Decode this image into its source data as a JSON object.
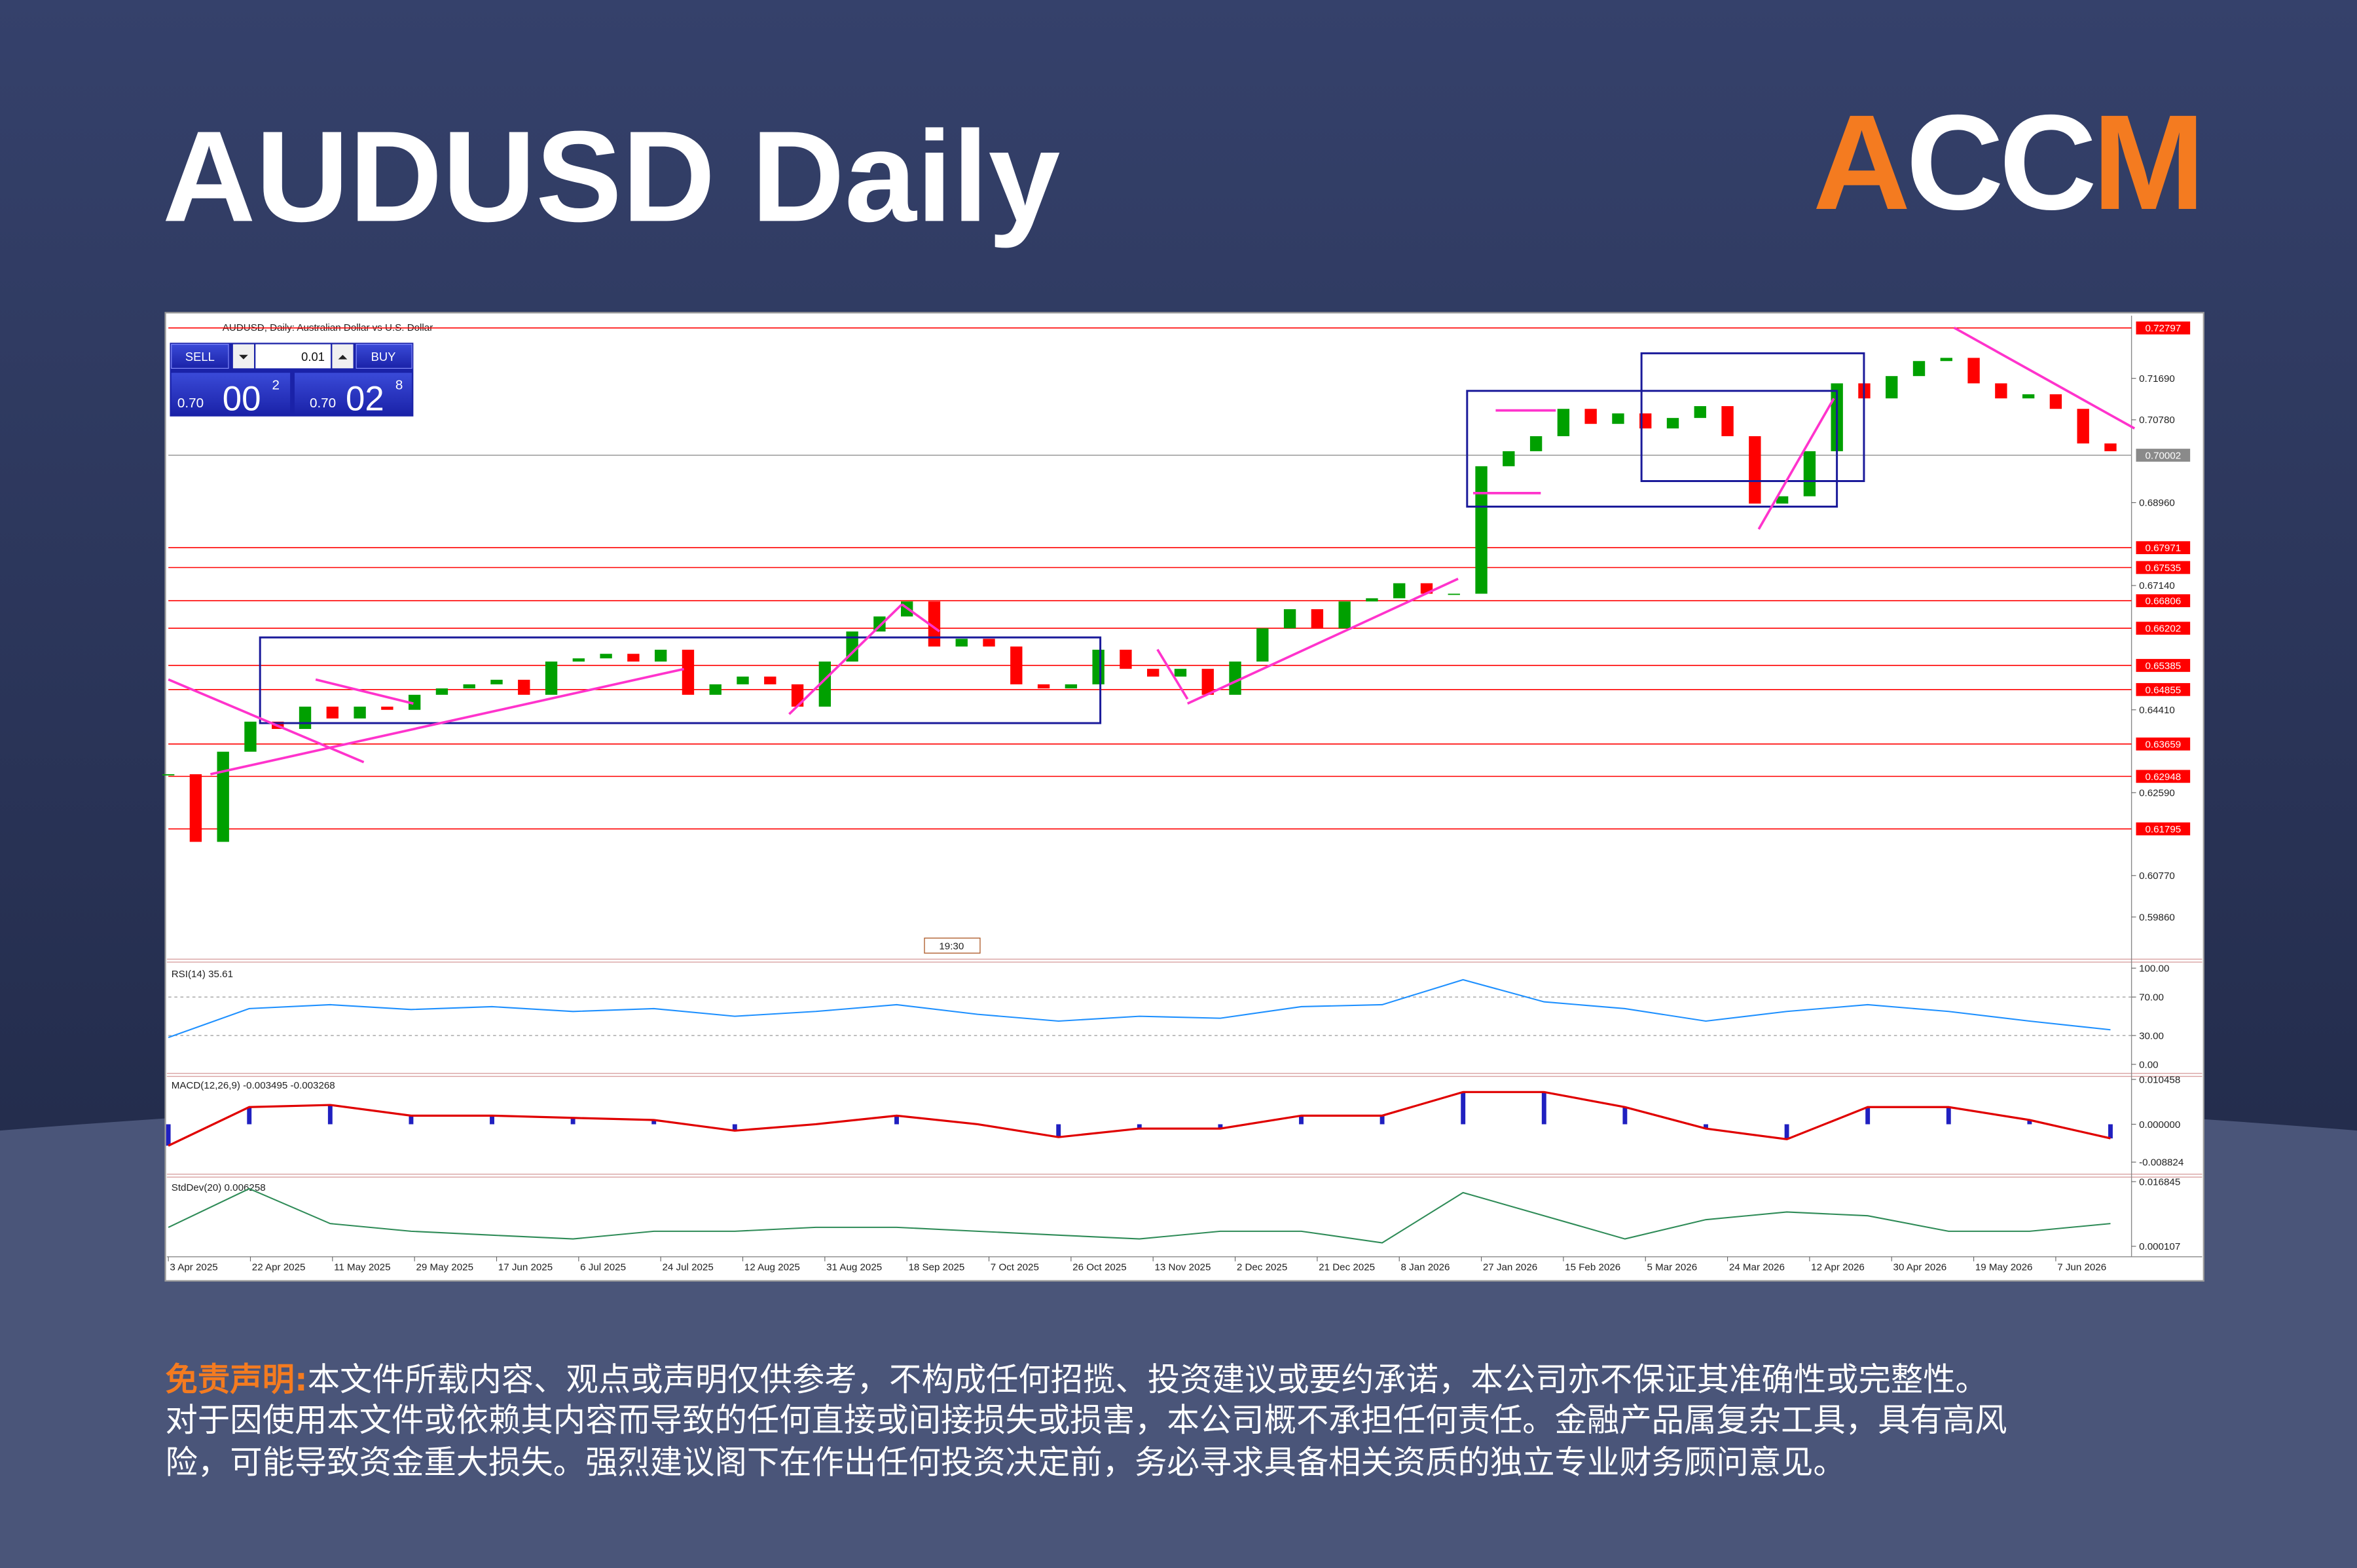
{
  "header": {
    "title": "AUDUSD Daily",
    "logo": [
      "A",
      "CC",
      "M"
    ]
  },
  "trade_panel": {
    "sell": "SELL",
    "buy": "BUY",
    "lot": "0.01",
    "sell_price": [
      "0.70",
      "00",
      "2"
    ],
    "buy_price": [
      "0.70",
      "02",
      "8"
    ]
  },
  "chart_data": [
    {
      "type": "candlestick",
      "title": "AUDUSD, Daily:  Australian Dollar vs U.S. Dollar",
      "up_color": "#00a000",
      "down_color": "#ff0000",
      "categories": [
        "3 Apr 2025",
        null,
        null,
        "22 Apr 2025",
        null,
        null,
        "11 May 2025",
        null,
        null,
        "29 May 2025",
        null,
        null,
        "17 Jun 2025",
        null,
        null,
        "6 Jul 2025",
        null,
        null,
        "24 Jul 2025",
        null,
        null,
        "12 Aug 2025",
        null,
        null,
        "31 Aug 2025",
        null,
        null,
        "18 Sep 2025",
        null,
        null,
        "7 Oct 2025",
        null,
        null,
        "26 Oct 2025",
        null,
        null,
        "13 Nov 2025",
        null,
        null,
        "2 Dec 2025",
        null,
        null,
        "21 Dec 2025",
        null,
        null,
        "8 Jan 2026",
        null,
        null,
        "27 Jan 2026",
        null,
        null,
        "15 Feb 2026",
        null,
        null,
        "5 Mar 2026",
        null,
        null,
        "24 Mar 2026",
        null,
        null,
        "12 Apr 2026",
        null,
        null,
        "30 Apr 2026",
        null,
        null,
        "19 May 2026",
        null,
        null,
        "7 Jun 2026",
        null,
        null
      ],
      "values": [
        0.62995,
        0.6151,
        0.6349,
        0.6415,
        0.6399,
        0.6448,
        0.6422,
        0.6448,
        0.6441,
        0.6474,
        0.6488,
        0.6497,
        0.6507,
        0.6474,
        0.6547,
        0.6554,
        0.6564,
        0.6547,
        0.6573,
        0.6474,
        0.6497,
        0.6514,
        0.6497,
        0.6448,
        0.6547,
        0.6613,
        0.6646,
        0.6679,
        0.658,
        0.6597,
        0.658,
        0.6497,
        0.6488,
        0.6497,
        0.6573,
        0.6531,
        0.6514,
        0.6531,
        0.6474,
        0.6547,
        0.662,
        0.6662,
        0.662,
        0.6679,
        0.6686,
        0.6719,
        0.6696,
        0.6696,
        0.6976,
        0.7009,
        0.7042,
        0.7102,
        0.7069,
        0.7092,
        0.7059,
        0.7082,
        0.7108,
        0.7042,
        0.6894,
        0.691,
        0.7009,
        0.7158,
        0.7125,
        0.7174,
        0.7207,
        0.7214,
        0.7158,
        0.7125,
        0.7134,
        0.7102,
        0.7026,
        0.7009
      ],
      "ylim": [
        0.59,
        0.73
      ],
      "yticks": [
        {
          "value": 0.7169,
          "label": "0.71690"
        },
        {
          "value": 0.7078,
          "label": "0.70780"
        },
        {
          "value": 0.6896,
          "label": "0.68960"
        },
        {
          "value": 0.6714,
          "label": "0.67140"
        },
        {
          "value": 0.6441,
          "label": "0.64410"
        },
        {
          "value": 0.6259,
          "label": "0.62590"
        },
        {
          "value": 0.6077,
          "label": "0.60770"
        },
        {
          "value": 0.5986,
          "label": "0.59860"
        }
      ],
      "levels": [
        0.72797,
        0.67971,
        0.67535,
        0.66806,
        0.66202,
        0.65385,
        0.64855,
        0.63659,
        0.62948,
        0.61795
      ],
      "level_color": "#ff0000",
      "current": 0.70002,
      "time_marker": "19:30"
    },
    {
      "type": "line",
      "title": "RSI(14) 35.61",
      "color": "#1e90ff",
      "values": [
        28,
        58,
        62,
        57,
        60,
        55,
        58,
        50,
        55,
        62,
        52,
        45,
        50,
        48,
        60,
        62,
        88,
        65,
        58,
        45,
        55,
        62,
        55,
        45,
        36
      ],
      "ylim": [
        0,
        100
      ],
      "yticks": [
        {
          "value": 100,
          "label": "100.00"
        },
        {
          "value": 70,
          "label": "70.00"
        },
        {
          "value": 30,
          "label": "30.00"
        },
        {
          "value": 0,
          "label": "0.00"
        }
      ],
      "levels": [
        70,
        30
      ]
    },
    {
      "type": "bar",
      "title": "MACD(12,26,9) -0.003495 -0.003268",
      "color": "#2020c0",
      "line_color": "#e00000",
      "values": [
        -0.005,
        0.004,
        0.0045,
        0.002,
        0.002,
        0.0015,
        0.001,
        -0.0015,
        0,
        0.002,
        0,
        -0.003,
        -0.001,
        -0.001,
        0.002,
        0.002,
        0.0075,
        0.0075,
        0.004,
        -0.001,
        -0.0035,
        0.004,
        0.004,
        0.001,
        -0.0033
      ],
      "ylim": [
        -0.008824,
        0.010458
      ],
      "yticks": [
        0.010458,
        {
          "value": 0,
          "label": "0.000000"
        },
        -0.008824
      ]
    },
    {
      "type": "line",
      "title": "StdDev(20) 0.006258",
      "color": "#2e8b57",
      "values": [
        0.005,
        0.015,
        0.006,
        0.004,
        0.003,
        0.002,
        0.004,
        0.004,
        0.005,
        0.005,
        0.004,
        0.003,
        0.002,
        0.004,
        0.004,
        0.001,
        0.014,
        0.008,
        0.002,
        0.007,
        0.009,
        0.008,
        0.004,
        0.004,
        0.006
      ],
      "ylim": [
        0.000107,
        0.016845
      ],
      "yticks": [
        0.016845,
        0.000107
      ]
    }
  ],
  "disclaimer": {
    "label": "免责声明:",
    "lines": [
      "本文件所载内容、观点或声明仅供参考，不构成任何招揽、投资建议或要约承诺，本公司亦不保证其准确性或完整性。",
      "对于因使用本文件或依赖其内容而导致的任何直接或间接损失或损害，本公司概不承担任何责任。金融产品属复杂工具，具有高风",
      "险，可能导致资金重大损失。强烈建议阁下在作出任何投资决定前，务必寻求具备相关资质的独立专业财务顾问意见。"
    ]
  }
}
